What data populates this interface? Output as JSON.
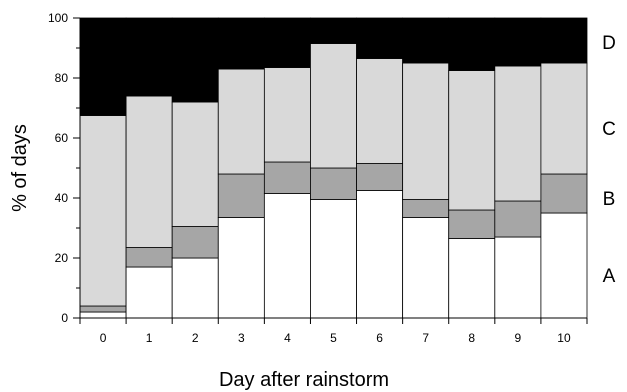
{
  "chart_data": {
    "type": "bar",
    "stacked": true,
    "xlabel": "Day after rainstorm",
    "ylabel": "% of days",
    "ylim": [
      0,
      100
    ],
    "yticks": [
      0,
      20,
      40,
      60,
      80,
      100
    ],
    "categories": [
      "0",
      "1",
      "2",
      "3",
      "4",
      "5",
      "6",
      "7",
      "8",
      "9",
      "10"
    ],
    "series": [
      {
        "name": "A",
        "color": "#ffffff",
        "values": [
          2,
          17,
          20,
          33.5,
          41.5,
          39.5,
          42.5,
          33.5,
          26.5,
          27,
          35
        ]
      },
      {
        "name": "B",
        "color": "#a6a6a6",
        "values": [
          2,
          6.5,
          10.5,
          14.5,
          10.5,
          10.5,
          9,
          6,
          9.5,
          12,
          13
        ]
      },
      {
        "name": "C",
        "color": "#d9d9d9",
        "values": [
          63.5,
          50.5,
          41.5,
          35,
          31.5,
          41.5,
          35,
          45.5,
          46.5,
          45,
          37
        ]
      },
      {
        "name": "D",
        "color": "#000000",
        "values": [
          32.5,
          26,
          28,
          17,
          16.5,
          8.5,
          13.5,
          15,
          17.5,
          16,
          15
        ]
      }
    ],
    "grid": false,
    "legend": "right, labels beside bands"
  }
}
